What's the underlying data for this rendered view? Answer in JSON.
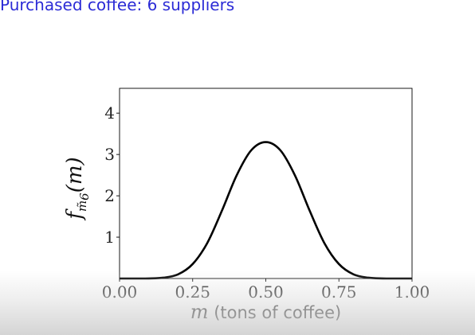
{
  "slide": {
    "title": "Purchased coffee: 6 suppliers"
  },
  "chart_data": {
    "type": "line",
    "title": "",
    "xlabel_var": "m",
    "xlabel_text": " (tons of coffee)",
    "ylabel_func": "f",
    "ylabel_sub": "m̃",
    "ylabel_subsub": "6",
    "ylabel_arg": "(m)",
    "xlim": [
      0.0,
      1.0
    ],
    "ylim": [
      0.0,
      4.6
    ],
    "xticks": [
      "0.00",
      "0.25",
      "0.50",
      "0.75",
      "1.00"
    ],
    "xtick_values": [
      0.0,
      0.25,
      0.5,
      0.75,
      1.0
    ],
    "yticks": [
      "1",
      "2",
      "3",
      "4"
    ],
    "ytick_values": [
      1,
      2,
      3,
      4
    ],
    "grid": false,
    "line_color": "#000000",
    "series": [
      {
        "x": [
          0.0,
          0.05,
          0.1,
          0.15,
          0.2,
          0.25,
          0.3,
          0.35,
          0.4,
          0.45,
          0.5,
          0.55,
          0.6,
          0.65,
          0.7,
          0.75,
          0.8,
          0.85,
          0.9,
          0.95,
          1.0
        ],
        "y": [
          0.0,
          0.0,
          0.002,
          0.02,
          0.1,
          0.35,
          0.86,
          1.64,
          2.49,
          3.1,
          3.3,
          3.1,
          2.49,
          1.64,
          0.86,
          0.35,
          0.1,
          0.02,
          0.002,
          0.0,
          0.0
        ]
      }
    ]
  }
}
